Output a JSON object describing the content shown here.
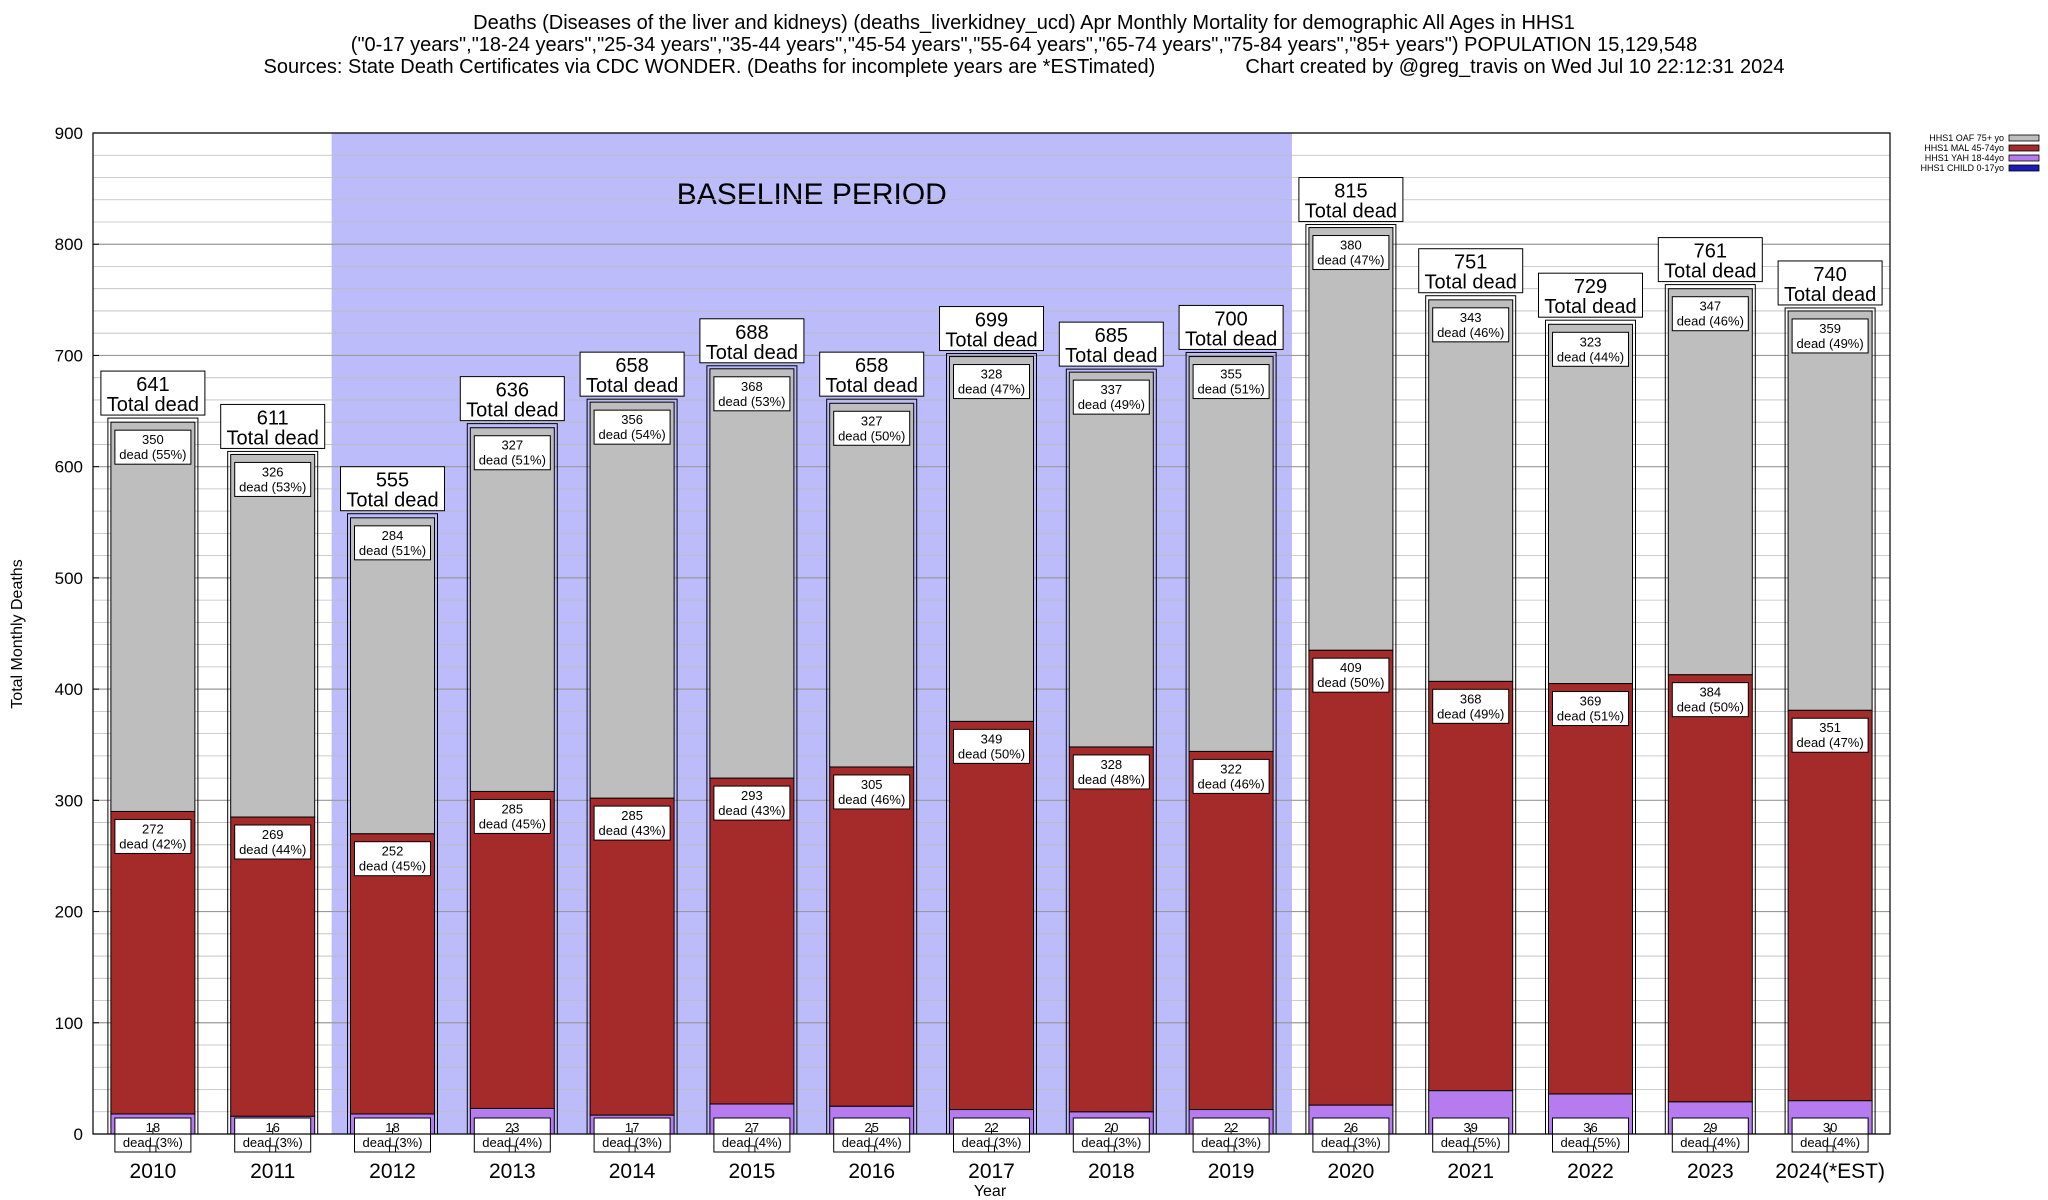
{
  "title": {
    "line1": "Deaths (Diseases of the liver and kidneys) (deaths_liverkidney_ucd) Apr Monthly Mortality for demographic All Ages in HHS1",
    "line2": "(\"0-17 years\",\"18-24 years\",\"25-34 years\",\"35-44 years\",\"45-54 years\",\"55-64 years\",\"65-74 years\",\"75-84 years\",\"85+ years\") POPULATION 15,129,548",
    "line3_left": "Sources: State Death Certificates via CDC WONDER. (Deaths for incomplete years are *ESTimated)",
    "line3_right": "Chart created by @greg_travis on Wed Jul 10 22:12:31 2024"
  },
  "chart_data": {
    "type": "bar",
    "stacked": true,
    "xlabel": "Year",
    "ylabel": "Total Monthly Deaths",
    "ylim": [
      0,
      900
    ],
    "yticks": [
      0,
      100,
      200,
      300,
      400,
      500,
      600,
      700,
      800,
      900
    ],
    "grid": true,
    "legend_position": "top-right",
    "baseline_label": "BASELINE PERIOD",
    "baseline_range": [
      "2012",
      "2019"
    ],
    "baseline_color": "#bcbcfa",
    "total_label_suffix": "Total dead",
    "segment_label_word": "dead",
    "categories": [
      "2010",
      "2011",
      "2012",
      "2013",
      "2014",
      "2015",
      "2016",
      "2017",
      "2018",
      "2019",
      "2020",
      "2021",
      "2022",
      "2023",
      "2024(*EST)"
    ],
    "totals": [
      641,
      611,
      555,
      636,
      658,
      688,
      658,
      699,
      685,
      700,
      815,
      751,
      729,
      761,
      740
    ],
    "series": [
      {
        "name": "HHS1 CHILD 0-17yo",
        "color": "#1a1ab8",
        "values": [
          0,
          0,
          0,
          0,
          0,
          0,
          0,
          0,
          0,
          0,
          0,
          0,
          0,
          0,
          0
        ],
        "pct": [],
        "labeled": false
      },
      {
        "name": "HHS1 YAH 18-44yo",
        "color": "#b57bef",
        "values": [
          18,
          16,
          18,
          23,
          17,
          27,
          25,
          22,
          20,
          22,
          26,
          39,
          36,
          29,
          30
        ],
        "pct": [
          "3%",
          "3%",
          "3%",
          "4%",
          "3%",
          "4%",
          "4%",
          "3%",
          "3%",
          "3%",
          "3%",
          "5%",
          "5%",
          "4%",
          "4%"
        ],
        "labeled": true
      },
      {
        "name": "HHS1 MAL 45-74yo",
        "color": "#a52a2a",
        "values": [
          272,
          269,
          252,
          285,
          285,
          293,
          305,
          349,
          328,
          322,
          409,
          368,
          369,
          384,
          351
        ],
        "pct": [
          "42%",
          "44%",
          "45%",
          "45%",
          "43%",
          "43%",
          "46%",
          "50%",
          "48%",
          "46%",
          "50%",
          "49%",
          "51%",
          "50%",
          "47%"
        ],
        "labeled": true
      },
      {
        "name": "HHS1 OAF 75+ yo",
        "color": "#bebebe",
        "values": [
          350,
          326,
          284,
          327,
          356,
          368,
          327,
          328,
          337,
          355,
          380,
          343,
          323,
          347,
          359
        ],
        "pct": [
          "55%",
          "53%",
          "51%",
          "51%",
          "54%",
          "53%",
          "50%",
          "47%",
          "49%",
          "51%",
          "47%",
          "46%",
          "44%",
          "46%",
          "49%"
        ],
        "labeled": true
      }
    ]
  }
}
